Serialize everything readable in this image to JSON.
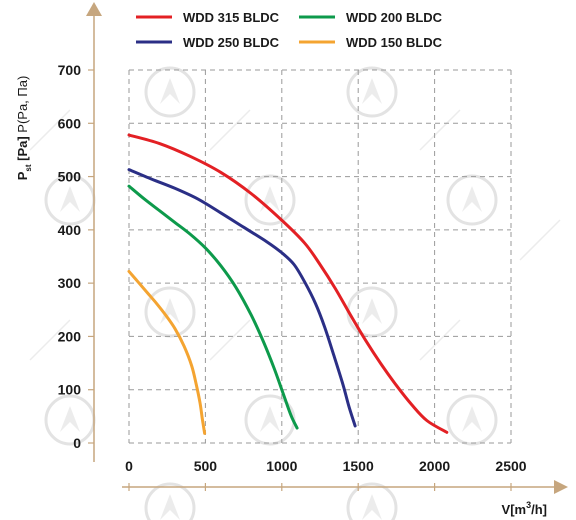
{
  "chart_data": {
    "type": "line",
    "xlabel_main": "V[m",
    "xlabel_sup": "3",
    "xlabel_end": "/h]",
    "ylabel_main": "P",
    "ylabel_sub": "st",
    "ylabel_unit": " [Pa]",
    "ylabel_alt": " P(Pa, Па)",
    "xlim": [
      0,
      2500
    ],
    "ylim": [
      0,
      700
    ],
    "x_ticks": [
      "0",
      "500",
      "1000",
      "1500",
      "2000",
      "2500"
    ],
    "y_ticks": [
      "0",
      "100",
      "200",
      "300",
      "400",
      "500",
      "600",
      "700"
    ],
    "x_tick_values": [
      0,
      500,
      1000,
      1500,
      2000,
      2500
    ],
    "y_tick_values": [
      0,
      100,
      200,
      300,
      400,
      500,
      600,
      700
    ],
    "grid": true,
    "legend_position": "top",
    "series": [
      {
        "name": "WDD 315 BLDC",
        "color": "#e32024",
        "points": [
          [
            0,
            578
          ],
          [
            200,
            562
          ],
          [
            400,
            538
          ],
          [
            600,
            508
          ],
          [
            800,
            468
          ],
          [
            1000,
            418
          ],
          [
            1150,
            375
          ],
          [
            1250,
            335
          ],
          [
            1350,
            290
          ],
          [
            1450,
            240
          ],
          [
            1550,
            192
          ],
          [
            1650,
            148
          ],
          [
            1750,
            108
          ],
          [
            1850,
            72
          ],
          [
            1950,
            42
          ],
          [
            2080,
            20
          ]
        ]
      },
      {
        "name": "WDD 250 BLDC",
        "color": "#2b2f86",
        "points": [
          [
            0,
            513
          ],
          [
            150,
            495
          ],
          [
            300,
            478
          ],
          [
            450,
            458
          ],
          [
            600,
            432
          ],
          [
            750,
            405
          ],
          [
            900,
            378
          ],
          [
            1000,
            357
          ],
          [
            1080,
            335
          ],
          [
            1150,
            302
          ],
          [
            1220,
            262
          ],
          [
            1280,
            218
          ],
          [
            1340,
            165
          ],
          [
            1400,
            110
          ],
          [
            1440,
            68
          ],
          [
            1480,
            32
          ]
        ]
      },
      {
        "name": "WDD 200 BLDC",
        "color": "#0d9a4b",
        "points": [
          [
            0,
            482
          ],
          [
            100,
            458
          ],
          [
            200,
            436
          ],
          [
            300,
            414
          ],
          [
            400,
            392
          ],
          [
            500,
            366
          ],
          [
            600,
            333
          ],
          [
            700,
            292
          ],
          [
            800,
            240
          ],
          [
            880,
            190
          ],
          [
            950,
            140
          ],
          [
            1010,
            92
          ],
          [
            1060,
            52
          ],
          [
            1100,
            28
          ]
        ]
      },
      {
        "name": "WDD 150 BLDC",
        "color": "#f4a431",
        "points": [
          [
            0,
            322
          ],
          [
            60,
            302
          ],
          [
            120,
            282
          ],
          [
            180,
            262
          ],
          [
            240,
            240
          ],
          [
            300,
            215
          ],
          [
            360,
            182
          ],
          [
            410,
            145
          ],
          [
            440,
            110
          ],
          [
            465,
            75
          ],
          [
            480,
            45
          ],
          [
            495,
            18
          ]
        ]
      }
    ]
  }
}
